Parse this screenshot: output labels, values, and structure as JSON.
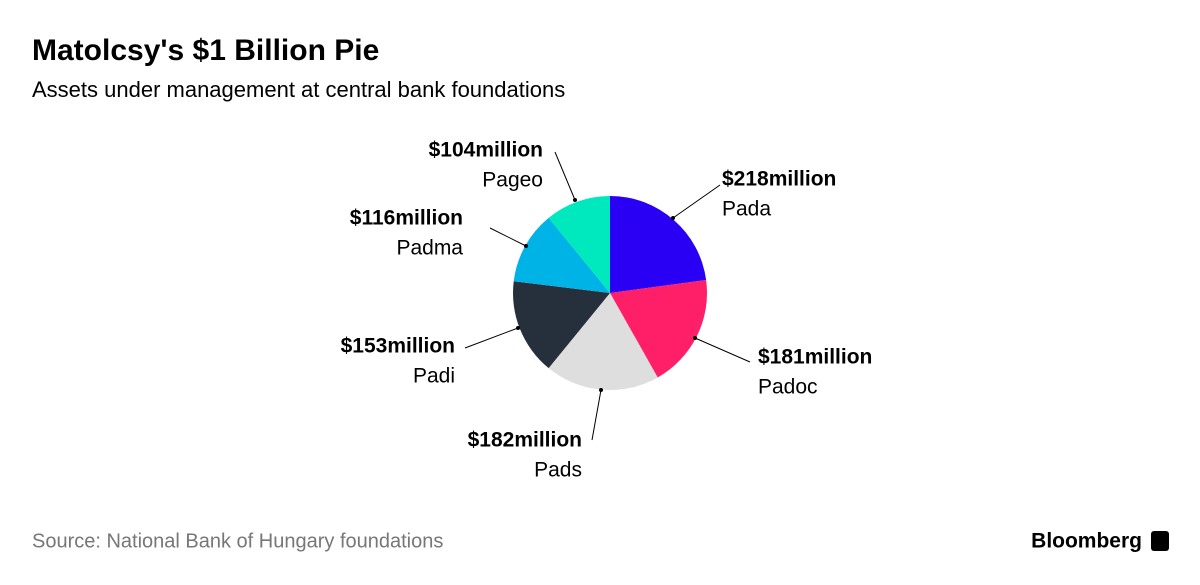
{
  "chart_data": {
    "type": "pie",
    "title": "Matolcsy's $1 Billion Pie",
    "subtitle": "Assets under management at central bank foundations",
    "categories": [
      "Pada",
      "Padoc",
      "Pads",
      "Padi",
      "Padma",
      "Pageo"
    ],
    "values": [
      218,
      181,
      182,
      153,
      116,
      104
    ],
    "value_labels": [
      "$218million",
      "$181million",
      "$182million",
      "$153million",
      "$116million",
      "$104million"
    ],
    "colors": [
      "#2a00f5",
      "#ff1f68",
      "#dedede",
      "#25303c",
      "#00b3e6",
      "#00e8bd"
    ],
    "source": "Source: National Bank of Hungary foundations",
    "brand": "Bloomberg"
  }
}
